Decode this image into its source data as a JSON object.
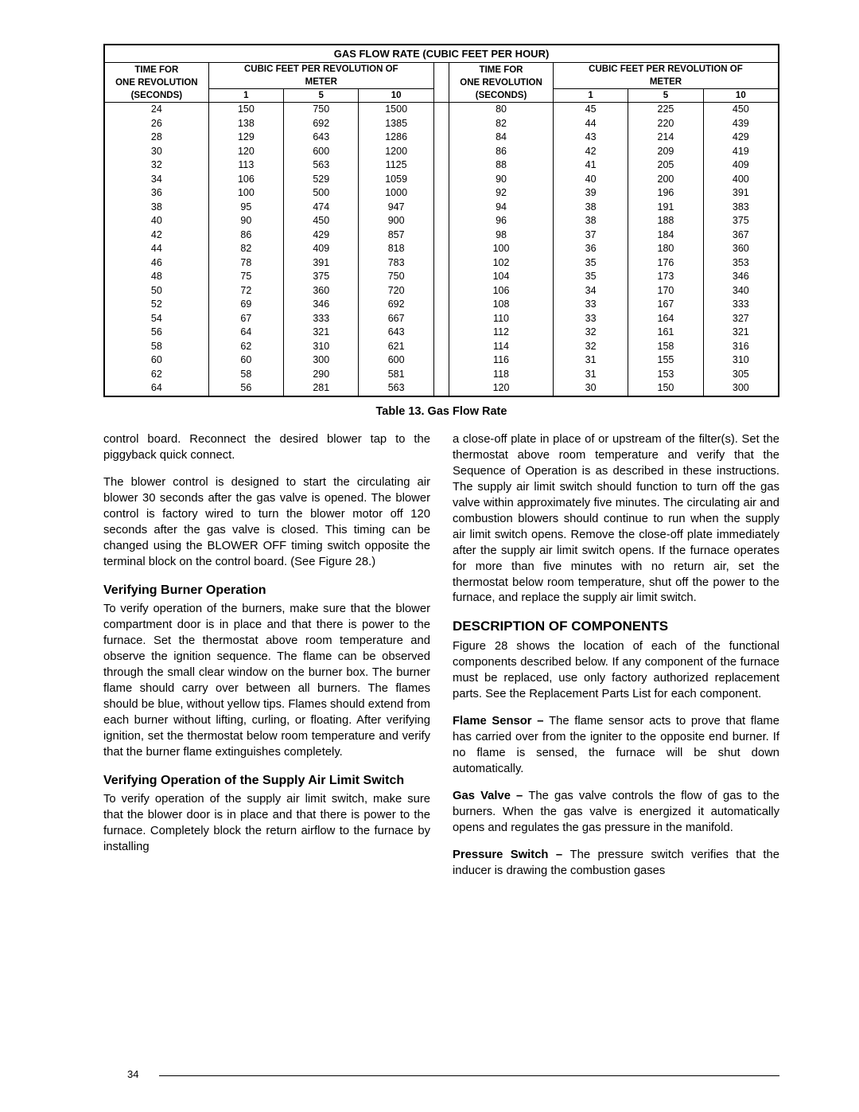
{
  "table": {
    "main_title": "GAS FLOW RATE (CUBIC FEET PER HOUR)",
    "time_header_line1": "TIME FOR",
    "time_header_line2": "ONE REVOLUTION",
    "time_header_line3": "(SECONDS)",
    "cubic_header_line1": "CUBIC FEET PER REVOLUTION OF",
    "cubic_header_line2": "METER",
    "meter_cols": [
      "1",
      "5",
      "10"
    ],
    "left_rows": [
      [
        "24",
        "150",
        "750",
        "1500"
      ],
      [
        "26",
        "138",
        "692",
        "1385"
      ],
      [
        "28",
        "129",
        "643",
        "1286"
      ],
      [
        "30",
        "120",
        "600",
        "1200"
      ],
      [
        "32",
        "113",
        "563",
        "1125"
      ],
      [
        "34",
        "106",
        "529",
        "1059"
      ],
      [
        "36",
        "100",
        "500",
        "1000"
      ],
      [
        "38",
        "95",
        "474",
        "947"
      ],
      [
        "40",
        "90",
        "450",
        "900"
      ],
      [
        "42",
        "86",
        "429",
        "857"
      ],
      [
        "44",
        "82",
        "409",
        "818"
      ],
      [
        "46",
        "78",
        "391",
        "783"
      ],
      [
        "48",
        "75",
        "375",
        "750"
      ],
      [
        "50",
        "72",
        "360",
        "720"
      ],
      [
        "52",
        "69",
        "346",
        "692"
      ],
      [
        "54",
        "67",
        "333",
        "667"
      ],
      [
        "56",
        "64",
        "321",
        "643"
      ],
      [
        "58",
        "62",
        "310",
        "621"
      ],
      [
        "60",
        "60",
        "300",
        "600"
      ],
      [
        "62",
        "58",
        "290",
        "581"
      ],
      [
        "64",
        "56",
        "281",
        "563"
      ]
    ],
    "right_rows": [
      [
        "80",
        "45",
        "225",
        "450"
      ],
      [
        "82",
        "44",
        "220",
        "439"
      ],
      [
        "84",
        "43",
        "214",
        "429"
      ],
      [
        "86",
        "42",
        "209",
        "419"
      ],
      [
        "88",
        "41",
        "205",
        "409"
      ],
      [
        "90",
        "40",
        "200",
        "400"
      ],
      [
        "92",
        "39",
        "196",
        "391"
      ],
      [
        "94",
        "38",
        "191",
        "383"
      ],
      [
        "96",
        "38",
        "188",
        "375"
      ],
      [
        "98",
        "37",
        "184",
        "367"
      ],
      [
        "100",
        "36",
        "180",
        "360"
      ],
      [
        "102",
        "35",
        "176",
        "353"
      ],
      [
        "104",
        "35",
        "173",
        "346"
      ],
      [
        "106",
        "34",
        "170",
        "340"
      ],
      [
        "108",
        "33",
        "167",
        "333"
      ],
      [
        "110",
        "33",
        "164",
        "327"
      ],
      [
        "112",
        "32",
        "161",
        "321"
      ],
      [
        "114",
        "32",
        "158",
        "316"
      ],
      [
        "116",
        "31",
        "155",
        "310"
      ],
      [
        "118",
        "31",
        "153",
        "305"
      ],
      [
        "120",
        "30",
        "150",
        "300"
      ]
    ]
  },
  "caption": "Table 13.  Gas Flow Rate",
  "body": {
    "left": {
      "p1": "control board. Reconnect the desired blower tap to the piggyback quick connect.",
      "p2": "The blower control is designed to start the circulating air blower 30 seconds after the gas valve is opened. The blower control is factory wired to turn the blower motor off 120 seconds after the gas valve is closed. This timing can be changed using the BLOWER OFF timing switch opposite the terminal block on the control board. (See Figure 28.)",
      "h1": "Verifying Burner Operation",
      "p3": "To verify operation of the burners, make sure that the blower compartment door is in place and that there is power to the furnace. Set the thermostat above room temperature and observe the ignition sequence. The flame can be observed  through the small clear window on the burner box. The burner flame should carry over between all burners. The flames should be blue, without yellow tips. Flames should extend from each burner without lifting, curling, or floating. After verifying ignition, set the thermostat below room temperature and verify that the burner flame extinguishes completely.",
      "h2": "Verifying Operation of the Supply Air Limit Switch",
      "p4": "To verify operation of the supply air  limit switch, make sure that the blower door is in place and that there is power to the furnace.  Completely block the return airflow to the furnace by installing"
    },
    "right": {
      "p1": "a close-off plate in place of or upstream of the filter(s). Set the thermostat above room temperature and verify that the Sequence of Operation is as described in these instructions. The supply air  limit switch should function to turn off the gas valve within approximately five minutes. The circulating air and combustion blowers should continue to run when the supply air limit switch opens. Remove the close-off plate immediately after the supply air  limit switch opens. If the furnace operates for more than five minutes with no return air, set the thermostat below room temperature, shut off the power to the furnace, and replace the supply air  limit switch.",
      "h1": "DESCRIPTION OF COMPONENTS",
      "p2": "Figure 28 shows the location of each of the functional components described below. If any component of the furnace must be replaced, use only factory authorized replacement parts. See the Replacement Parts List for each component.",
      "flame_label": "Flame Sensor – ",
      "p3": "The flame sensor acts to prove that flame has carried over from the igniter to the opposite end burner. If no flame is sensed, the furnace will be shut down automatically.",
      "gas_label": "Gas Valve – ",
      "p4": "The gas valve controls the flow of gas to the burners. When the gas valve is energized it automatically opens and regulates the gas pressure in the manifold.",
      "pressure_label": "Pressure Switch – ",
      "p5": "The pressure switch verifies that the inducer is drawing the combustion gases"
    }
  },
  "page_number": "34"
}
